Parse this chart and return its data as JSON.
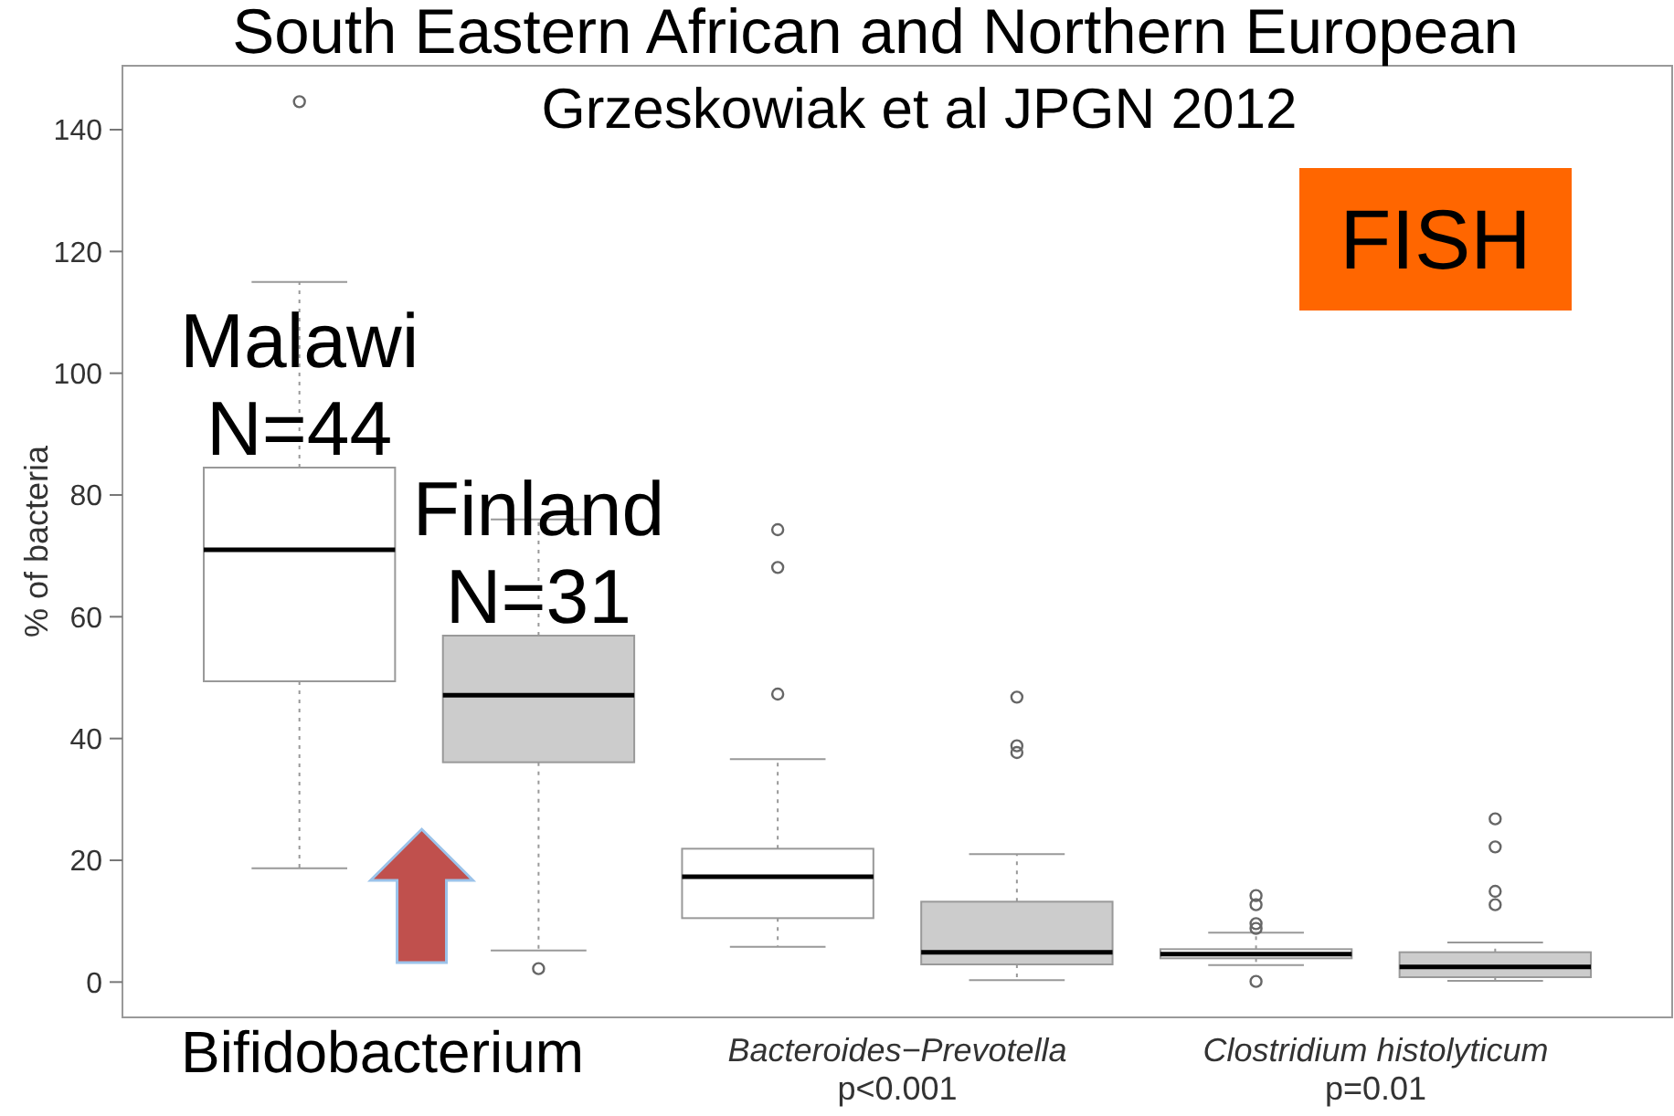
{
  "chart_data": {
    "type": "box",
    "title": "South Eastern African and Northern European",
    "subtitle": "Grzeskowiak et al JPGN 2012",
    "ylabel": "% of bacteria",
    "categories": [
      "Bifidobacterium",
      "Bacteroides−Prevotella\np<0.001",
      "Clostridium histolyticum\np=0.01"
    ],
    "series": [
      {
        "name": "Malawi N=44",
        "color": "#ffffff",
        "boxes": [
          {
            "low": 18.7,
            "q1": 49.4,
            "median": 71,
            "q3": 84.5,
            "high": 115,
            "outliers": [
              144.6
            ]
          },
          {
            "low": 5.8,
            "q1": 10.5,
            "median": 17.3,
            "q3": 21.9,
            "high": 36.6,
            "outliers": [
              74.3,
              68.1,
              47.3
            ]
          },
          {
            "low": 2.8,
            "q1": 3.9,
            "median": 4.6,
            "q3": 5.4,
            "high": 8.1,
            "outliers": [
              14.2,
              12.7,
              9.6,
              8.8,
              0.1
            ]
          }
        ]
      },
      {
        "name": "Finland N=31",
        "color": "#cccccc",
        "boxes": [
          {
            "low": 5.2,
            "q1": 36.1,
            "median": 47.1,
            "q3": 56.9,
            "high": 76,
            "outliers": [
              2.2
            ]
          },
          {
            "low": 0.3,
            "q1": 2.9,
            "median": 4.9,
            "q3": 13.2,
            "high": 21,
            "outliers": [
              46.8,
              38.8,
              37.7
            ]
          },
          {
            "low": 0.2,
            "q1": 0.8,
            "median": 2.5,
            "q3": 4.9,
            "high": 6.5,
            "outliers": [
              26.8,
              22.2,
              14.9,
              12.7
            ]
          }
        ]
      }
    ],
    "ylim": [
      -5.8,
      150.5
    ],
    "yticks": [
      0,
      20,
      40,
      60,
      80,
      100,
      120,
      140
    ],
    "annotations": [
      "FISH"
    ]
  }
}
